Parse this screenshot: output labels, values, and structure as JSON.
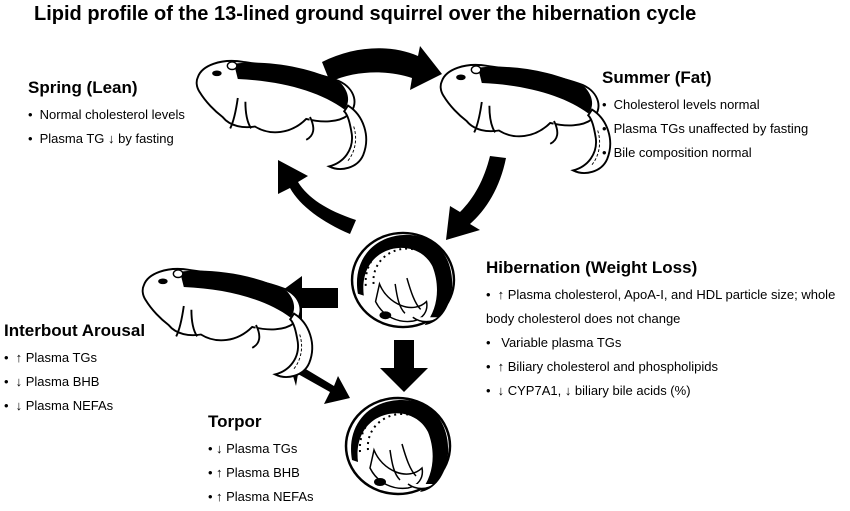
{
  "title": "Lipid profile of the 13-lined ground squirrel over the hibernation cycle",
  "stages": {
    "spring": {
      "heading": "Spring (Lean)",
      "items": [
        {
          "bullet": "•",
          "text": "Normal cholesterol levels"
        },
        {
          "bullet": "•",
          "text": "Plasma TG ↓ by fasting"
        }
      ]
    },
    "summer": {
      "heading": "Summer (Fat)",
      "items": [
        {
          "bullet": "•",
          "text": "Cholesterol levels normal"
        },
        {
          "bullet": "•",
          "text": "Plasma TGs unaffected by fasting"
        },
        {
          "bullet": "•",
          "text": "Bile composition normal"
        }
      ]
    },
    "hibernation": {
      "heading": "Hibernation (Weight Loss)",
      "items": [
        {
          "bullet": "•",
          "text": "↑ Plasma cholesterol, ApoA-I, and HDL particle size; whole body cholesterol does not change"
        },
        {
          "bullet": "•",
          "text": "Variable plasma TGs"
        },
        {
          "bullet": "•",
          "text": "↑ Biliary cholesterol and phospholipids"
        },
        {
          "bullet": "•",
          "text": "↓ CYP7A1, ↓ biliary bile acids (%)"
        }
      ]
    },
    "arousal": {
      "heading": "Interbout Arousal",
      "items": [
        {
          "bullet": "•",
          "text": "↑  Plasma TGs"
        },
        {
          "bullet": "•",
          "text": "↓  Plasma BHB"
        },
        {
          "bullet": "•",
          "text": "↓  Plasma NEFAs"
        }
      ]
    },
    "torpor": {
      "heading": "Torpor",
      "items": [
        {
          "bullet": "•",
          "text": "↓ Plasma TGs"
        },
        {
          "bullet": "•",
          "text": "↑ Plasma BHB"
        },
        {
          "bullet": "•",
          "text": "↑ Plasma NEFAs"
        }
      ]
    }
  },
  "icons": {
    "squirrel_standing": "ground-squirrel-standing-icon",
    "squirrel_curled": "ground-squirrel-curled-icon",
    "arrow": "cycle-arrow-icon"
  },
  "colors": {
    "ink": "#000000",
    "background": "#ffffff"
  }
}
